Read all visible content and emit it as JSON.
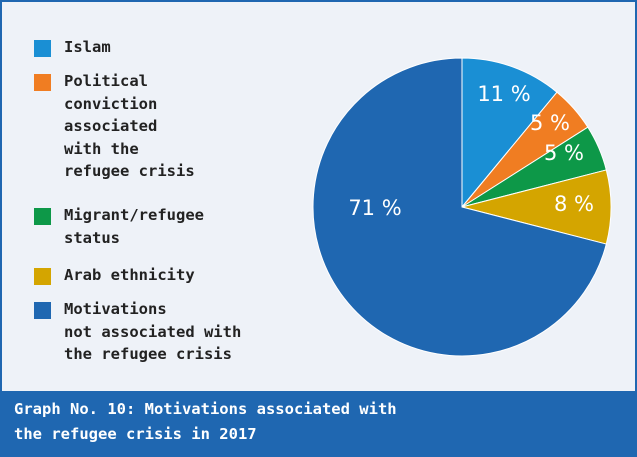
{
  "chart_data": {
    "type": "pie",
    "title": "Graph No. 10: Motivations associated with the refugee crisis in 2017",
    "slices": [
      {
        "label": "Islam",
        "value": 11,
        "color": "#1a8fd4",
        "display": "11 %"
      },
      {
        "label": "Political conviction associated with the refugee crisis",
        "value": 5,
        "color": "#f07d22",
        "display": "5 %"
      },
      {
        "label": "Migrant/refugee status",
        "value": 5,
        "color": "#0d9848",
        "display": "5 %"
      },
      {
        "label": "Arab ethnicity",
        "value": 8,
        "color": "#d4a500",
        "display": "8 %"
      },
      {
        "label": "Motivations not associated with the refugee crisis",
        "value": 71,
        "color": "#1f67b1",
        "display": "71 %"
      }
    ],
    "legend_placement": "left"
  },
  "legend": [
    {
      "lines": [
        "Islam"
      ],
      "color": "#1a8fd4"
    },
    {
      "lines": [
        "Political",
        "conviction",
        "associated",
        "with the",
        "refugee crisis"
      ],
      "color": "#f07d22"
    },
    {
      "lines": [
        "Migrant/refugee",
        "status"
      ],
      "color": "#0d9848"
    },
    {
      "lines": [
        "Arab ethnicity"
      ],
      "color": "#d4a500"
    },
    {
      "lines": [
        "Motivations",
        "not associated with",
        "the refugee crisis"
      ],
      "color": "#1f67b1"
    }
  ],
  "caption": {
    "line1": "Graph No. 10: Motivations associated with",
    "line2": "the refugee crisis in 2017"
  },
  "colors": {
    "frame": "#1f67b1",
    "background": "#eef2f8"
  }
}
